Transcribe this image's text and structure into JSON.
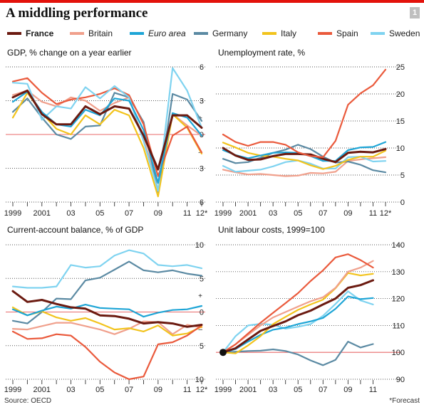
{
  "title": "A middling performance",
  "chart_number": "1",
  "source": "Source: OECD",
  "note": "*Forecast",
  "colors": {
    "France": "#6b1a10",
    "Britain": "#f0a08c",
    "Euro area": "#1ea5d6",
    "Germany": "#5b8aa3",
    "Italy": "#f2c31c",
    "Spain": "#ea5a3c",
    "Sweden": "#7fd3f0",
    "zero_line": "#e86868"
  },
  "legend": [
    {
      "name": "France",
      "bold": true,
      "italic": false
    },
    {
      "name": "Britain",
      "bold": false,
      "italic": false
    },
    {
      "name": "Euro area",
      "bold": false,
      "italic": true
    },
    {
      "name": "Germany",
      "bold": false,
      "italic": false
    },
    {
      "name": "Italy",
      "bold": false,
      "italic": false
    },
    {
      "name": "Spain",
      "bold": false,
      "italic": false
    },
    {
      "name": "Sweden",
      "bold": false,
      "italic": false
    }
  ],
  "chart_data": [
    {
      "type": "line",
      "title": "GDP, % change on a year earlier",
      "x": [
        1999,
        2000,
        2001,
        2002,
        2003,
        2004,
        2005,
        2006,
        2007,
        2008,
        2009,
        2010,
        2011,
        2012
      ],
      "x_tick_labels": [
        "1999",
        "2001",
        "03",
        "05",
        "07",
        "09",
        "11",
        "12*"
      ],
      "ylim": [
        -6,
        6
      ],
      "y_ticks": [
        -6,
        -3,
        0,
        3,
        6
      ],
      "y_tick_labels": [
        "6",
        "3",
        "0",
        "3",
        "6"
      ],
      "sign_marks": {
        "plus": "+",
        "minus": "–"
      },
      "series": [
        {
          "name": "Britain",
          "values": [
            3.5,
            3.9,
            2.9,
            2.5,
            3.3,
            3.0,
            2.1,
            2.8,
            3.3,
            -0.5,
            -4.3,
            1.8,
            0.8,
            -0.1
          ]
        },
        {
          "name": "Germany",
          "values": [
            2.0,
            3.2,
            1.5,
            0.0,
            -0.4,
            0.7,
            0.8,
            3.7,
            3.3,
            1.1,
            -5.1,
            3.6,
            3.1,
            1.2
          ]
        },
        {
          "name": "Italy",
          "values": [
            1.5,
            3.7,
            1.9,
            0.5,
            0.0,
            1.7,
            0.9,
            2.2,
            1.7,
            -1.2,
            -5.5,
            1.8,
            0.6,
            -1.7
          ]
        },
        {
          "name": "Spain",
          "values": [
            4.7,
            5.0,
            3.7,
            2.7,
            3.1,
            3.3,
            3.6,
            4.1,
            3.5,
            0.9,
            -3.7,
            -0.1,
            0.7,
            -1.6
          ]
        },
        {
          "name": "Sweden",
          "values": [
            4.6,
            4.5,
            1.3,
            2.5,
            2.3,
            4.2,
            3.2,
            4.3,
            3.3,
            -0.6,
            -5.0,
            5.9,
            3.9,
            0.6
          ]
        },
        {
          "name": "Euro area",
          "values": [
            2.9,
            3.8,
            2.0,
            0.9,
            0.7,
            2.2,
            1.7,
            3.2,
            3.0,
            0.4,
            -4.3,
            1.9,
            1.5,
            -0.1
          ]
        },
        {
          "name": "France",
          "values": [
            3.3,
            3.9,
            1.8,
            0.9,
            0.9,
            2.5,
            1.8,
            2.5,
            2.3,
            -0.1,
            -3.1,
            1.7,
            1.7,
            0.6
          ]
        }
      ]
    },
    {
      "type": "line",
      "title": "Unemployment rate, %",
      "x": [
        1999,
        2000,
        2001,
        2002,
        2003,
        2004,
        2005,
        2006,
        2007,
        2008,
        2009,
        2010,
        2011,
        2012
      ],
      "x_tick_labels": [
        "1999",
        "2001",
        "03",
        "05",
        "07",
        "09",
        "11",
        "12*"
      ],
      "ylim": [
        0,
        25
      ],
      "y_ticks": [
        0,
        5,
        10,
        15,
        20,
        25
      ],
      "y_tick_labels": [
        "0",
        "5",
        "10",
        "15",
        "20",
        "25"
      ],
      "series": [
        {
          "name": "Britain",
          "values": [
            6.0,
            5.5,
            5.1,
            5.2,
            5.0,
            4.8,
            4.9,
            5.4,
            5.3,
            5.6,
            7.6,
            7.9,
            8.1,
            8.3
          ]
        },
        {
          "name": "Sweden",
          "values": [
            6.7,
            5.6,
            5.8,
            6.0,
            6.6,
            7.4,
            7.7,
            7.1,
            6.2,
            6.2,
            8.3,
            8.4,
            7.5,
            7.6
          ]
        },
        {
          "name": "Germany",
          "values": [
            8.0,
            7.2,
            7.4,
            8.2,
            9.1,
            9.7,
            10.6,
            9.8,
            8.4,
            7.3,
            7.5,
            6.9,
            5.9,
            5.5
          ]
        },
        {
          "name": "Italy",
          "values": [
            11.0,
            10.1,
            9.1,
            8.6,
            8.4,
            8.0,
            7.7,
            6.8,
            6.1,
            6.7,
            7.8,
            8.4,
            8.4,
            9.5
          ]
        },
        {
          "name": "Euro area",
          "values": [
            9.6,
            8.7,
            8.1,
            8.6,
            9.1,
            9.2,
            9.1,
            8.5,
            7.6,
            7.6,
            9.6,
            10.1,
            10.2,
            11.1
          ]
        },
        {
          "name": "France",
          "values": [
            10.0,
            8.6,
            7.8,
            7.9,
            8.5,
            8.9,
            8.9,
            8.8,
            8.0,
            7.4,
            9.1,
            9.3,
            9.2,
            9.8
          ]
        },
        {
          "name": "Spain",
          "values": [
            12.5,
            11.1,
            10.4,
            11.1,
            11.1,
            10.6,
            9.2,
            8.5,
            8.3,
            11.3,
            18.0,
            20.1,
            21.6,
            24.5
          ]
        }
      ]
    },
    {
      "type": "line",
      "title": "Current-account balance, % of GDP",
      "x": [
        1999,
        2000,
        2001,
        2002,
        2003,
        2004,
        2005,
        2006,
        2007,
        2008,
        2009,
        2010,
        2011,
        2012
      ],
      "x_tick_labels": [
        "1999",
        "2001",
        "03",
        "05",
        "07",
        "09",
        "11",
        "12*"
      ],
      "ylim": [
        -10,
        10
      ],
      "y_ticks": [
        -10,
        -5,
        0,
        5,
        10
      ],
      "y_tick_labels": [
        "10",
        "5",
        "0",
        "5",
        "10"
      ],
      "sign_marks": {
        "plus": "+",
        "minus": "–"
      },
      "series": [
        {
          "name": "Sweden",
          "values": [
            3.8,
            3.6,
            3.6,
            3.8,
            7.0,
            6.6,
            6.8,
            8.4,
            9.2,
            8.7,
            7.0,
            6.8,
            7.0,
            6.5
          ]
        },
        {
          "name": "Germany",
          "values": [
            -1.3,
            -1.7,
            0.0,
            2.0,
            1.9,
            4.7,
            5.1,
            6.3,
            7.5,
            6.2,
            5.9,
            6.2,
            5.7,
            5.4
          ]
        },
        {
          "name": "Britain",
          "values": [
            -2.5,
            -2.6,
            -2.1,
            -1.6,
            -1.6,
            -2.1,
            -2.6,
            -3.3,
            -2.5,
            -1.4,
            -1.5,
            -3.3,
            -1.9,
            -2.3
          ]
        },
        {
          "name": "Italy",
          "values": [
            0.7,
            -0.5,
            0.1,
            -0.8,
            -1.3,
            -0.9,
            -1.7,
            -2.6,
            -2.4,
            -2.9,
            -2.0,
            -3.5,
            -3.2,
            -2.2
          ]
        },
        {
          "name": "Spain",
          "values": [
            -2.9,
            -4.0,
            -3.9,
            -3.3,
            -3.5,
            -5.2,
            -7.4,
            -9.0,
            -10.0,
            -9.6,
            -4.8,
            -4.5,
            -3.5,
            -2.0
          ]
        },
        {
          "name": "Euro area",
          "values": [
            0.4,
            -0.5,
            0.2,
            0.8,
            0.5,
            1.1,
            0.6,
            0.5,
            0.4,
            -0.7,
            -0.1,
            0.3,
            0.4,
            0.9
          ]
        },
        {
          "name": "France",
          "values": [
            3.1,
            1.5,
            1.8,
            1.2,
            0.7,
            0.5,
            -0.5,
            -0.6,
            -1.0,
            -1.7,
            -1.5,
            -1.7,
            -2.2,
            -1.9
          ]
        }
      ]
    },
    {
      "type": "line",
      "title": "Unit labour costs, 1999=100",
      "x": [
        1999,
        2000,
        2001,
        2002,
        2003,
        2004,
        2005,
        2006,
        2007,
        2008,
        2009,
        2010,
        2011
      ],
      "x_tick_labels": [
        "1999",
        "2001",
        "03",
        "05",
        "07",
        "09",
        "11"
      ],
      "ylim": [
        90,
        140
      ],
      "y_ticks": [
        90,
        100,
        110,
        120,
        130,
        140
      ],
      "y_tick_labels": [
        "90",
        "100",
        "110",
        "120",
        "130",
        "140"
      ],
      "base_label": "1999=100",
      "series": [
        {
          "name": "Germany",
          "values": [
            100,
            100.2,
            100.5,
            100.6,
            101.1,
            100.5,
            99.2,
            97.0,
            95.2,
            97.2,
            104.0,
            101.8,
            103.1
          ]
        },
        {
          "name": "Sweden",
          "values": [
            100,
            106.0,
            110.0,
            110.6,
            110.3,
            108.8,
            109.5,
            110.5,
            113.6,
            118.0,
            122.7,
            119.3,
            117.8
          ]
        },
        {
          "name": "Euro area",
          "values": [
            100,
            101.2,
            104.0,
            106.5,
            108.4,
            109.2,
            110.5,
            111.5,
            112.8,
            116.2,
            120.8,
            119.8,
            120.2
          ]
        },
        {
          "name": "Italy",
          "values": [
            100,
            99.6,
            102.6,
            106.0,
            110.5,
            113.2,
            115.8,
            117.8,
            119.6,
            123.8,
            129.5,
            128.6,
            129.2
          ]
        },
        {
          "name": "Britain",
          "values": [
            100,
            103.0,
            106.5,
            110.0,
            113.0,
            115.0,
            117.0,
            119.0,
            120.5,
            124.0,
            130.0,
            131.5,
            134.0
          ]
        },
        {
          "name": "Spain",
          "values": [
            100,
            103.0,
            107.0,
            111.0,
            114.7,
            118.3,
            122.0,
            126.5,
            130.5,
            135.3,
            136.5,
            134.3,
            131.5
          ]
        },
        {
          "name": "France",
          "values": [
            100,
            101.5,
            104.8,
            108.0,
            109.8,
            111.5,
            113.8,
            115.5,
            117.8,
            120.0,
            124.0,
            125.0,
            126.8
          ]
        }
      ]
    }
  ]
}
